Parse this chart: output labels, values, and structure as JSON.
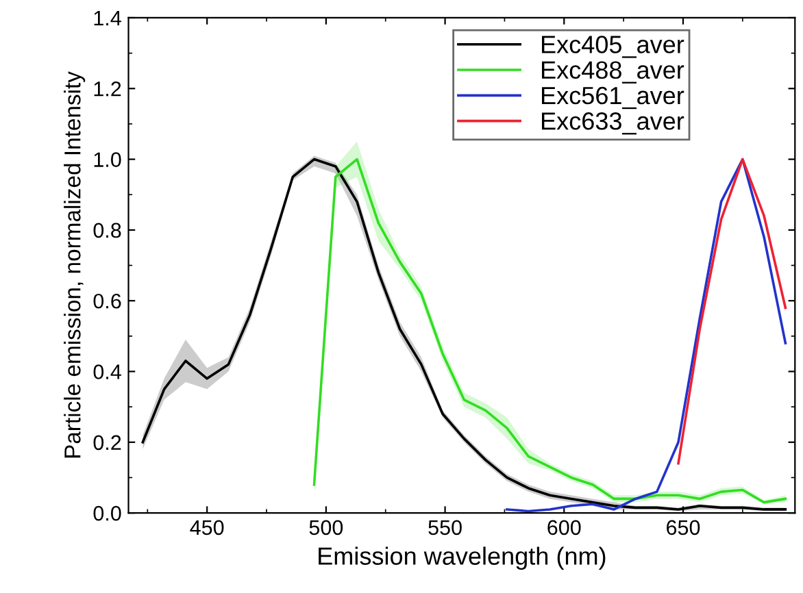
{
  "chart_data": {
    "type": "line",
    "xlabel": "Emission wavelength (nm)",
    "ylabel": "Particle emission, normalized Intensity",
    "xlim": [
      417,
      697
    ],
    "xticks": [
      450,
      500,
      550,
      600,
      650
    ],
    "ylim": [
      0,
      1.4
    ],
    "yticks": [
      {
        "value": 0,
        "label": "0.0"
      },
      0.2,
      0.4,
      0.6,
      0.8,
      {
        "value": 1,
        "label": "1.0"
      },
      1.2,
      1.4
    ],
    "grid": false,
    "legend": "top right",
    "series": [
      {
        "name": "Exc405_aver",
        "color": "#000000",
        "x": [
          423,
          432,
          441,
          450,
          459,
          468,
          477,
          486,
          495,
          504,
          513,
          522,
          531,
          540,
          549,
          558,
          567,
          576,
          585,
          594,
          603,
          612,
          621,
          630,
          639,
          648,
          657,
          666,
          675,
          684,
          693
        ],
        "values": [
          0.2,
          0.35,
          0.43,
          0.38,
          0.42,
          0.56,
          0.75,
          0.95,
          1.0,
          0.98,
          0.88,
          0.68,
          0.52,
          0.42,
          0.28,
          0.21,
          0.15,
          0.1,
          0.07,
          0.05,
          0.04,
          0.03,
          0.02,
          0.015,
          0.015,
          0.01,
          0.02,
          0.015,
          0.015,
          0.01,
          0.01
        ],
        "lower": [
          0.18,
          0.32,
          0.37,
          0.35,
          0.4,
          0.54,
          0.73,
          0.94,
          0.98,
          0.96,
          0.84,
          0.66,
          0.5,
          0.4,
          0.27,
          0.2,
          0.14,
          0.09,
          0.06,
          0.04,
          0.03,
          0.02,
          0.01,
          0.01,
          0.01,
          0.005,
          0.01,
          0.01,
          0.01,
          0.005,
          0.005
        ],
        "upper": [
          0.22,
          0.38,
          0.49,
          0.41,
          0.44,
          0.58,
          0.77,
          0.96,
          1.01,
          0.99,
          0.9,
          0.7,
          0.54,
          0.44,
          0.29,
          0.22,
          0.16,
          0.11,
          0.08,
          0.06,
          0.05,
          0.04,
          0.03,
          0.02,
          0.02,
          0.015,
          0.025,
          0.02,
          0.02,
          0.015,
          0.015
        ]
      },
      {
        "name": "Exc488_aver",
        "color": "#33dd22",
        "x": [
          495,
          504,
          513,
          522,
          531,
          540,
          549,
          558,
          567,
          576,
          585,
          594,
          603,
          612,
          621,
          630,
          639,
          648,
          657,
          666,
          675,
          684,
          693
        ],
        "values": [
          0.08,
          0.95,
          1.0,
          0.82,
          0.71,
          0.62,
          0.45,
          0.32,
          0.29,
          0.24,
          0.16,
          0.13,
          0.1,
          0.08,
          0.04,
          0.04,
          0.05,
          0.05,
          0.04,
          0.06,
          0.065,
          0.03,
          0.04
        ],
        "lower": [
          0.08,
          0.92,
          0.95,
          0.77,
          0.69,
          0.6,
          0.43,
          0.3,
          0.27,
          0.21,
          0.14,
          0.12,
          0.09,
          0.07,
          0.03,
          0.03,
          0.04,
          0.04,
          0.03,
          0.05,
          0.055,
          0.025,
          0.03
        ],
        "upper": [
          0.08,
          0.98,
          1.05,
          0.86,
          0.73,
          0.64,
          0.47,
          0.34,
          0.31,
          0.27,
          0.18,
          0.14,
          0.11,
          0.09,
          0.05,
          0.05,
          0.06,
          0.06,
          0.05,
          0.07,
          0.075,
          0.035,
          0.05
        ]
      },
      {
        "name": "Exc561_aver",
        "color": "#2233cc",
        "x": [
          576,
          585,
          594,
          603,
          612,
          621,
          630,
          639,
          648,
          657,
          666,
          675,
          684,
          693
        ],
        "values": [
          0.01,
          0.005,
          0.01,
          0.02,
          0.025,
          0.01,
          0.04,
          0.06,
          0.2,
          0.55,
          0.88,
          1.0,
          0.78,
          0.48
        ]
      },
      {
        "name": "Exc633_aver",
        "color": "#ee2233",
        "x": [
          648,
          657,
          666,
          675,
          684,
          693
        ],
        "values": [
          0.14,
          0.52,
          0.83,
          1.0,
          0.84,
          0.58
        ]
      }
    ]
  }
}
